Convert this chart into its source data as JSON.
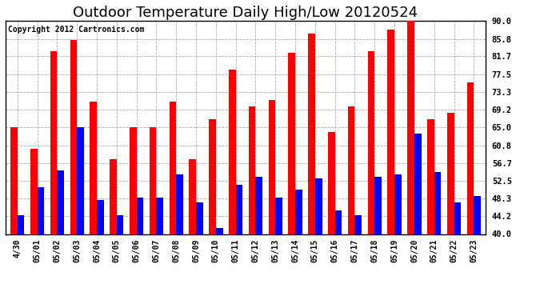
{
  "title": "Outdoor Temperature Daily High/Low 20120524",
  "copyright": "Copyright 2012 Cartronics.com",
  "dates": [
    "4/30",
    "05/01",
    "05/02",
    "05/03",
    "05/04",
    "05/05",
    "05/06",
    "05/07",
    "05/08",
    "05/09",
    "05/10",
    "05/11",
    "05/12",
    "05/13",
    "05/14",
    "05/15",
    "05/16",
    "05/17",
    "05/18",
    "05/19",
    "05/20",
    "05/21",
    "05/22",
    "05/23"
  ],
  "highs": [
    65.0,
    60.0,
    83.0,
    85.5,
    71.0,
    57.5,
    65.0,
    65.0,
    71.0,
    57.5,
    67.0,
    78.5,
    70.0,
    71.5,
    82.5,
    87.0,
    64.0,
    70.0,
    83.0,
    88.0,
    91.0,
    67.0,
    68.5,
    75.5
  ],
  "lows": [
    44.5,
    51.0,
    55.0,
    65.0,
    48.0,
    44.5,
    48.5,
    48.5,
    54.0,
    47.5,
    41.5,
    51.5,
    53.5,
    48.5,
    50.5,
    53.0,
    45.5,
    44.5,
    53.5,
    54.0,
    63.5,
    54.5,
    47.5,
    49.0
  ],
  "bar_color_high": "#ff0000",
  "bar_color_low": "#0000ff",
  "background_color": "#ffffff",
  "grid_color": "#aaaaaa",
  "ylim": [
    40.0,
    90.0
  ],
  "yticks": [
    40.0,
    44.2,
    48.3,
    52.5,
    56.7,
    60.8,
    65.0,
    69.2,
    73.3,
    77.5,
    81.7,
    85.8,
    90.0
  ],
  "ytick_labels": [
    "40.0",
    "44.2",
    "48.3",
    "52.5",
    "56.7",
    "60.8",
    "65.0",
    "69.2",
    "73.3",
    "77.5",
    "81.7",
    "85.8",
    "90.0"
  ],
  "title_fontsize": 13,
  "copyright_fontsize": 7,
  "tick_fontsize": 7,
  "bar_width": 0.35
}
